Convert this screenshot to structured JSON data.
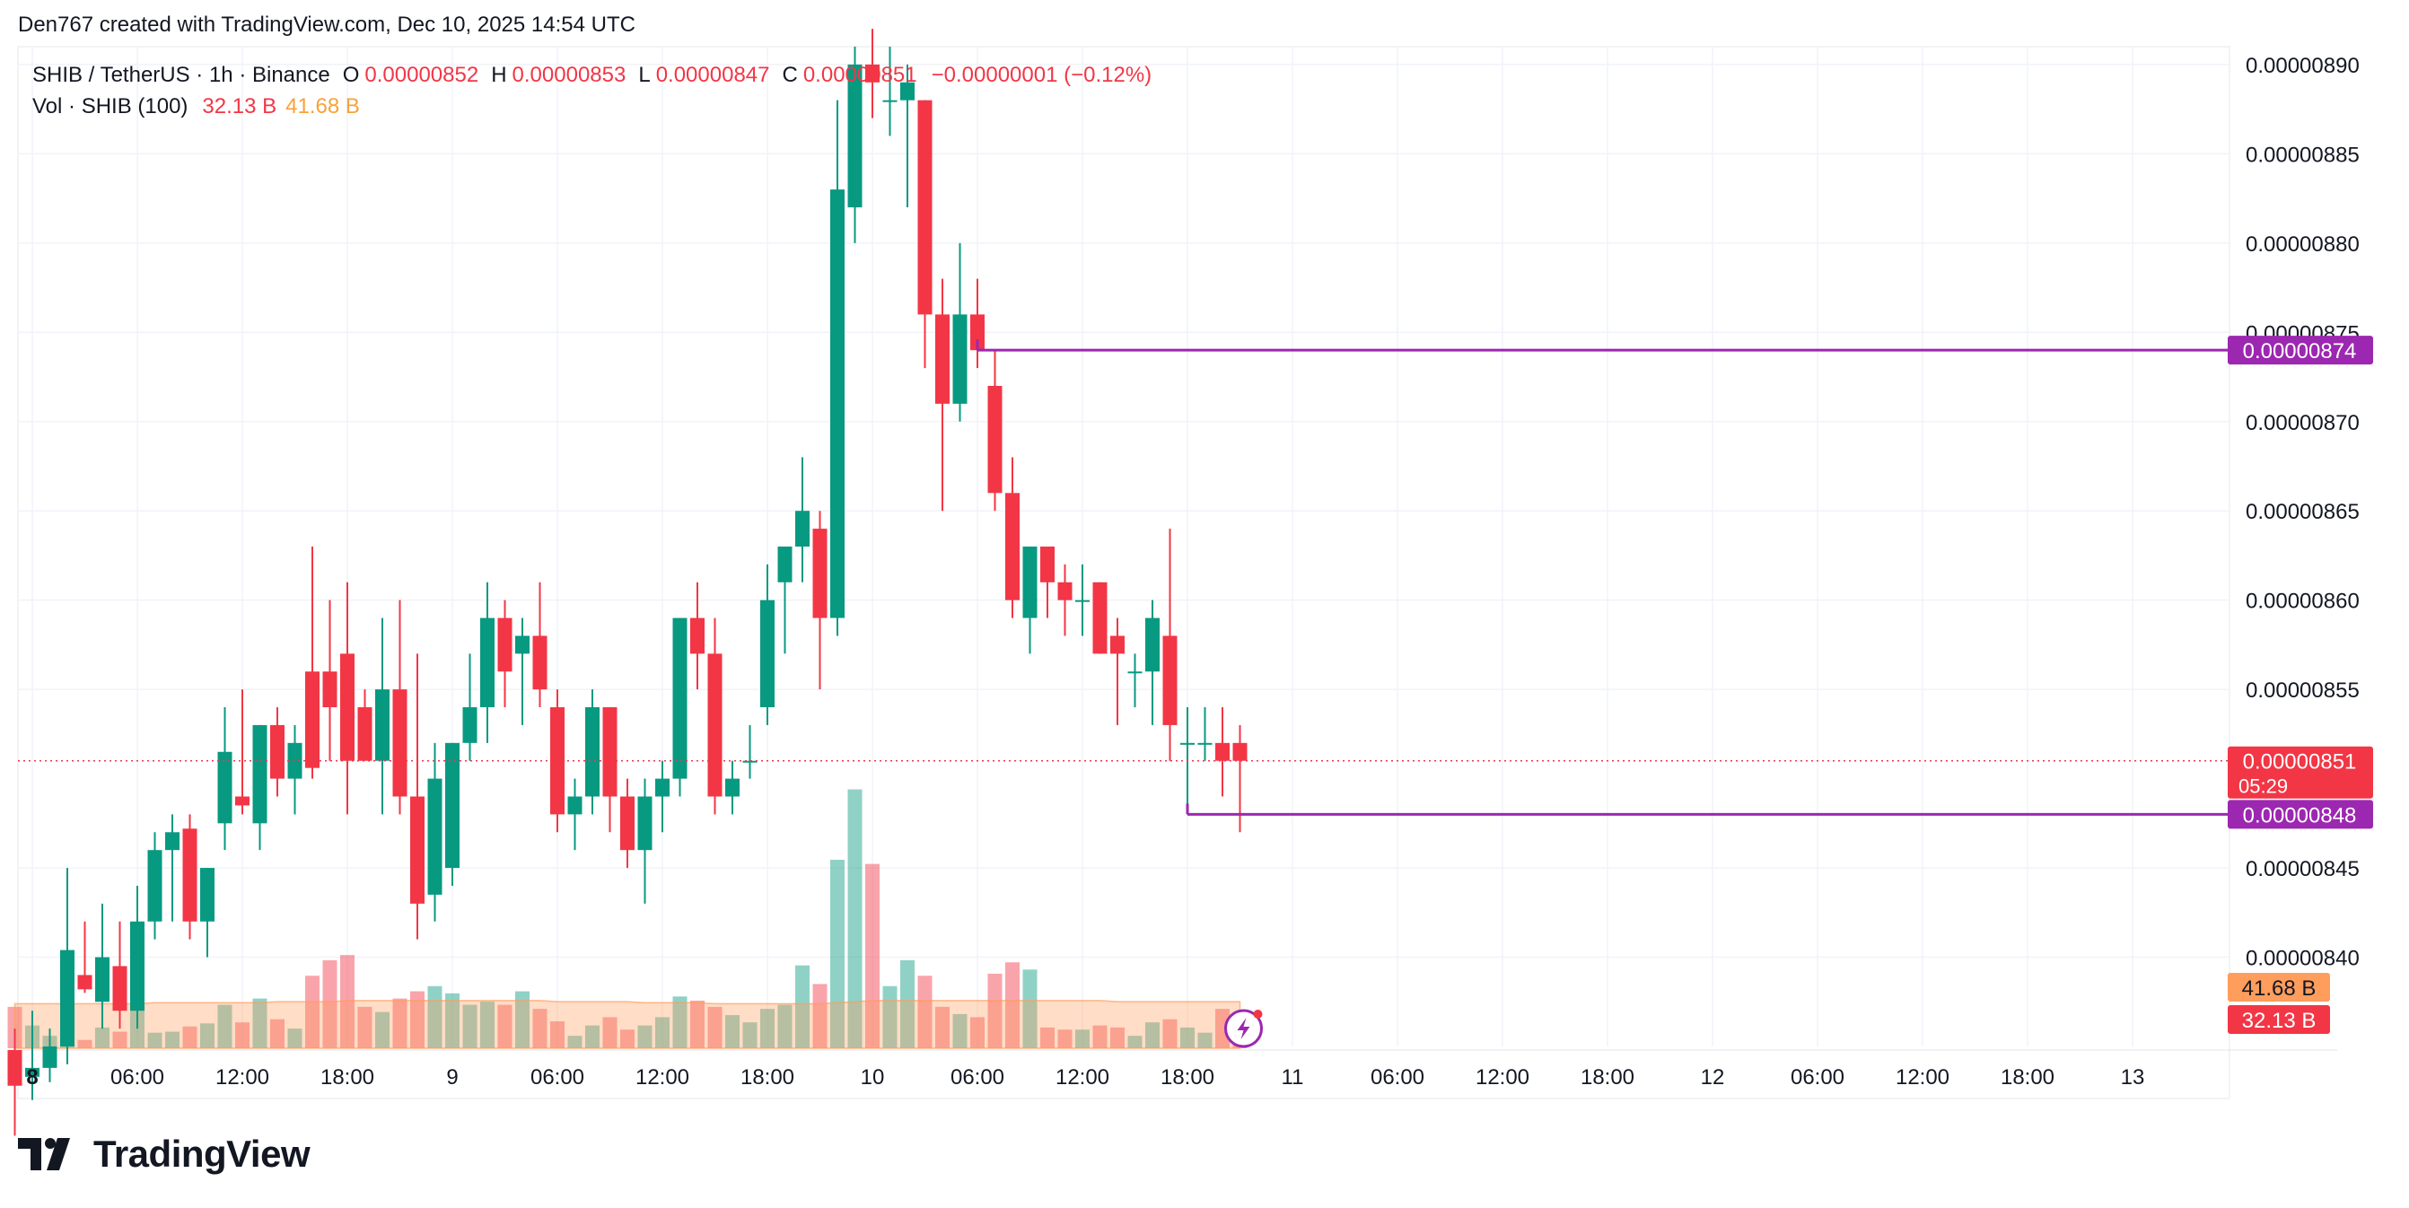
{
  "credit": "Den767 created with TradingView.com, Dec 10, 2025 14:54 UTC",
  "brand": {
    "name": "TradingView",
    "logo_icon": "tradingview-logo-icon"
  },
  "legend": {
    "symbol": "SHIB / TetherUS · 1h · Binance",
    "o_label": "O",
    "o_value": "0.00000852",
    "h_label": "H",
    "h_value": "0.00000853",
    "l_label": "L",
    "l_value": "0.00000847",
    "c_label": "C",
    "c_value": "0.00000851",
    "change": "−0.00000001 (−0.12%)",
    "vol_label": "Vol · SHIB (100)",
    "vol_value": "32.13 B",
    "vol_ma_value": "41.68 B"
  },
  "colors": {
    "up": "#089981",
    "down": "#f23645",
    "level_line": "#9c27b0",
    "vol_ma": "#ff9d5c",
    "price_line": "#f23645"
  },
  "chart_data": {
    "type": "candlestick",
    "symbol": "SHIB / TetherUS",
    "interval": "1h",
    "exchange": "Binance",
    "y_axis": {
      "min": 8.35e-06,
      "max": 8.91e-06,
      "ticks": [
        "0.00000890",
        "0.00000885",
        "0.00000880",
        "0.00000875",
        "0.00000870",
        "0.00000865",
        "0.00000860",
        "0.00000855",
        "0.00000845",
        "0.00000840"
      ],
      "tick_values": [
        8.9e-06,
        8.85e-06,
        8.8e-06,
        8.75e-06,
        8.7e-06,
        8.65e-06,
        8.6e-06,
        8.55e-06,
        8.45e-06,
        8.4e-06
      ]
    },
    "x_axis": {
      "labels": [
        "8",
        "06:00",
        "12:00",
        "18:00",
        "9",
        "06:00",
        "12:00",
        "18:00",
        "10",
        "06:00",
        "12:00",
        "18:00",
        "11",
        "06:00",
        "12:00",
        "18:00",
        "12",
        "06:00",
        "12:00",
        "18:00",
        "13"
      ],
      "label_hours": [
        1,
        7,
        13,
        19,
        25,
        31,
        37,
        43,
        49,
        55,
        61,
        67,
        73,
        79,
        85,
        91,
        97,
        103,
        109,
        115,
        121
      ],
      "bold": [
        "8"
      ]
    },
    "candles": [
      {
        "t": 0,
        "o": 8.348e-06,
        "h": 8.36e-06,
        "l": 8.3e-06,
        "c": 8.328e-06,
        "v": 0.4
      },
      {
        "t": 1,
        "o": 8.333e-06,
        "h": 8.37e-06,
        "l": 8.32e-06,
        "c": 8.338e-06,
        "v": 0.22
      },
      {
        "t": 2,
        "o": 8.338e-06,
        "h": 8.36e-06,
        "l": 8.33e-06,
        "c": 8.35e-06,
        "v": 0.12
      },
      {
        "t": 3,
        "o": 8.35e-06,
        "h": 8.45e-06,
        "l": 8.34e-06,
        "c": 8.404e-06,
        "v": 0.55
      },
      {
        "t": 4,
        "o": 8.39e-06,
        "h": 8.42e-06,
        "l": 8.38e-06,
        "c": 8.382e-06,
        "v": 0.08
      },
      {
        "t": 5,
        "o": 8.375e-06,
        "h": 8.43e-06,
        "l": 8.36e-06,
        "c": 8.4e-06,
        "v": 0.2
      },
      {
        "t": 6,
        "o": 8.395e-06,
        "h": 8.42e-06,
        "l": 8.36e-06,
        "c": 8.37e-06,
        "v": 0.16
      },
      {
        "t": 7,
        "o": 8.37e-06,
        "h": 8.44e-06,
        "l": 8.36e-06,
        "c": 8.42e-06,
        "v": 0.46
      },
      {
        "t": 8,
        "o": 8.42e-06,
        "h": 8.47e-06,
        "l": 8.41e-06,
        "c": 8.46e-06,
        "v": 0.15
      },
      {
        "t": 9,
        "o": 8.46e-06,
        "h": 8.48e-06,
        "l": 8.42e-06,
        "c": 8.47e-06,
        "v": 0.16
      },
      {
        "t": 10,
        "o": 8.472e-06,
        "h": 8.48e-06,
        "l": 8.41e-06,
        "c": 8.42e-06,
        "v": 0.21
      },
      {
        "t": 11,
        "o": 8.42e-06,
        "h": 8.45e-06,
        "l": 8.4e-06,
        "c": 8.45e-06,
        "v": 0.24
      },
      {
        "t": 12,
        "o": 8.475e-06,
        "h": 8.54e-06,
        "l": 8.46e-06,
        "c": 8.515e-06,
        "v": 0.42
      },
      {
        "t": 13,
        "o": 8.49e-06,
        "h": 8.55e-06,
        "l": 8.48e-06,
        "c": 8.485e-06,
        "v": 0.25
      },
      {
        "t": 14,
        "o": 8.475e-06,
        "h": 8.53e-06,
        "l": 8.46e-06,
        "c": 8.53e-06,
        "v": 0.48
      },
      {
        "t": 15,
        "o": 8.53e-06,
        "h": 8.54e-06,
        "l": 8.49e-06,
        "c": 8.5e-06,
        "v": 0.28
      },
      {
        "t": 16,
        "o": 8.5e-06,
        "h": 8.53e-06,
        "l": 8.48e-06,
        "c": 8.52e-06,
        "v": 0.19
      },
      {
        "t": 17,
        "o": 8.56e-06,
        "h": 8.63e-06,
        "l": 8.5e-06,
        "c": 8.506e-06,
        "v": 0.7
      },
      {
        "t": 18,
        "o": 8.56e-06,
        "h": 8.6e-06,
        "l": 8.51e-06,
        "c": 8.54e-06,
        "v": 0.85
      },
      {
        "t": 19,
        "o": 8.57e-06,
        "h": 8.61e-06,
        "l": 8.48e-06,
        "c": 8.51e-06,
        "v": 0.9
      },
      {
        "t": 20,
        "o": 8.54e-06,
        "h": 8.55e-06,
        "l": 8.51e-06,
        "c": 8.51e-06,
        "v": 0.4
      },
      {
        "t": 21,
        "o": 8.51e-06,
        "h": 8.59e-06,
        "l": 8.48e-06,
        "c": 8.55e-06,
        "v": 0.35
      },
      {
        "t": 22,
        "o": 8.55e-06,
        "h": 8.6e-06,
        "l": 8.48e-06,
        "c": 8.49e-06,
        "v": 0.48
      },
      {
        "t": 23,
        "o": 8.49e-06,
        "h": 8.57e-06,
        "l": 8.41e-06,
        "c": 8.43e-06,
        "v": 0.55
      },
      {
        "t": 24,
        "o": 8.435e-06,
        "h": 8.52e-06,
        "l": 8.42e-06,
        "c": 8.5e-06,
        "v": 0.6
      },
      {
        "t": 25,
        "o": 8.45e-06,
        "h": 8.52e-06,
        "l": 8.44e-06,
        "c": 8.52e-06,
        "v": 0.53
      },
      {
        "t": 26,
        "o": 8.52e-06,
        "h": 8.57e-06,
        "l": 8.51e-06,
        "c": 8.54e-06,
        "v": 0.42
      },
      {
        "t": 27,
        "o": 8.54e-06,
        "h": 8.61e-06,
        "l": 8.52e-06,
        "c": 8.59e-06,
        "v": 0.45
      },
      {
        "t": 28,
        "o": 8.59e-06,
        "h": 8.6e-06,
        "l": 8.54e-06,
        "c": 8.56e-06,
        "v": 0.42
      },
      {
        "t": 29,
        "o": 8.57e-06,
        "h": 8.59e-06,
        "l": 8.53e-06,
        "c": 8.58e-06,
        "v": 0.55
      },
      {
        "t": 30,
        "o": 8.58e-06,
        "h": 8.61e-06,
        "l": 8.54e-06,
        "c": 8.55e-06,
        "v": 0.38
      },
      {
        "t": 31,
        "o": 8.54e-06,
        "h": 8.55e-06,
        "l": 8.47e-06,
        "c": 8.48e-06,
        "v": 0.26
      },
      {
        "t": 32,
        "o": 8.48e-06,
        "h": 8.5e-06,
        "l": 8.46e-06,
        "c": 8.49e-06,
        "v": 0.12
      },
      {
        "t": 33,
        "o": 8.49e-06,
        "h": 8.55e-06,
        "l": 8.48e-06,
        "c": 8.54e-06,
        "v": 0.22
      },
      {
        "t": 34,
        "o": 8.54e-06,
        "h": 8.54e-06,
        "l": 8.47e-06,
        "c": 8.49e-06,
        "v": 0.3
      },
      {
        "t": 35,
        "o": 8.49e-06,
        "h": 8.5e-06,
        "l": 8.45e-06,
        "c": 8.46e-06,
        "v": 0.18
      },
      {
        "t": 36,
        "o": 8.46e-06,
        "h": 8.5e-06,
        "l": 8.43e-06,
        "c": 8.49e-06,
        "v": 0.22
      },
      {
        "t": 37,
        "o": 8.49e-06,
        "h": 8.51e-06,
        "l": 8.47e-06,
        "c": 8.5e-06,
        "v": 0.3
      },
      {
        "t": 38,
        "o": 8.5e-06,
        "h": 8.59e-06,
        "l": 8.49e-06,
        "c": 8.59e-06,
        "v": 0.5
      },
      {
        "t": 39,
        "o": 8.59e-06,
        "h": 8.61e-06,
        "l": 8.55e-06,
        "c": 8.57e-06,
        "v": 0.46
      },
      {
        "t": 40,
        "o": 8.57e-06,
        "h": 8.59e-06,
        "l": 8.48e-06,
        "c": 8.49e-06,
        "v": 0.4
      },
      {
        "t": 41,
        "o": 8.49e-06,
        "h": 8.51e-06,
        "l": 8.48e-06,
        "c": 8.5e-06,
        "v": 0.32
      },
      {
        "t": 42,
        "o": 8.51e-06,
        "h": 8.53e-06,
        "l": 8.5e-06,
        "c": 8.51e-06,
        "v": 0.25
      },
      {
        "t": 43,
        "o": 8.54e-06,
        "h": 8.62e-06,
        "l": 8.53e-06,
        "c": 8.6e-06,
        "v": 0.38
      },
      {
        "t": 44,
        "o": 8.61e-06,
        "h": 8.63e-06,
        "l": 8.57e-06,
        "c": 8.63e-06,
        "v": 0.42
      },
      {
        "t": 45,
        "o": 8.63e-06,
        "h": 8.68e-06,
        "l": 8.61e-06,
        "c": 8.65e-06,
        "v": 0.8
      },
      {
        "t": 46,
        "o": 8.64e-06,
        "h": 8.65e-06,
        "l": 8.55e-06,
        "c": 8.59e-06,
        "v": 0.62
      },
      {
        "t": 47,
        "o": 8.59e-06,
        "h": 8.88e-06,
        "l": 8.58e-06,
        "c": 8.83e-06,
        "v": 1.82
      },
      {
        "t": 48,
        "o": 8.82e-06,
        "h": 8.91e-06,
        "l": 8.8e-06,
        "c": 8.9e-06,
        "v": 2.5
      },
      {
        "t": 49,
        "o": 8.9e-06,
        "h": 8.92e-06,
        "l": 8.87e-06,
        "c": 8.89e-06,
        "v": 1.78
      },
      {
        "t": 50,
        "o": 8.88e-06,
        "h": 8.91e-06,
        "l": 8.86e-06,
        "c": 8.88e-06,
        "v": 0.6
      },
      {
        "t": 51,
        "o": 8.88e-06,
        "h": 8.9e-06,
        "l": 8.82e-06,
        "c": 8.89e-06,
        "v": 0.85
      },
      {
        "t": 52,
        "o": 8.88e-06,
        "h": 8.88e-06,
        "l": 8.73e-06,
        "c": 8.76e-06,
        "v": 0.7
      },
      {
        "t": 53,
        "o": 8.76e-06,
        "h": 8.78e-06,
        "l": 8.65e-06,
        "c": 8.71e-06,
        "v": 0.4
      },
      {
        "t": 54,
        "o": 8.71e-06,
        "h": 8.8e-06,
        "l": 8.7e-06,
        "c": 8.76e-06,
        "v": 0.33
      },
      {
        "t": 55,
        "o": 8.76e-06,
        "h": 8.78e-06,
        "l": 8.73e-06,
        "c": 8.74e-06,
        "v": 0.3
      },
      {
        "t": 56,
        "o": 8.72e-06,
        "h": 8.74e-06,
        "l": 8.65e-06,
        "c": 8.66e-06,
        "v": 0.72
      },
      {
        "t": 57,
        "o": 8.66e-06,
        "h": 8.68e-06,
        "l": 8.59e-06,
        "c": 8.6e-06,
        "v": 0.83
      },
      {
        "t": 58,
        "o": 8.59e-06,
        "h": 8.63e-06,
        "l": 8.57e-06,
        "c": 8.63e-06,
        "v": 0.76
      },
      {
        "t": 59,
        "o": 8.63e-06,
        "h": 8.63e-06,
        "l": 8.59e-06,
        "c": 8.61e-06,
        "v": 0.2
      },
      {
        "t": 60,
        "o": 8.61e-06,
        "h": 8.62e-06,
        "l": 8.58e-06,
        "c": 8.6e-06,
        "v": 0.18
      },
      {
        "t": 61,
        "o": 8.6e-06,
        "h": 8.62e-06,
        "l": 8.58e-06,
        "c": 8.6e-06,
        "v": 0.18
      },
      {
        "t": 62,
        "o": 8.61e-06,
        "h": 8.61e-06,
        "l": 8.57e-06,
        "c": 8.57e-06,
        "v": 0.22
      },
      {
        "t": 63,
        "o": 8.58e-06,
        "h": 8.59e-06,
        "l": 8.53e-06,
        "c": 8.57e-06,
        "v": 0.2
      },
      {
        "t": 64,
        "o": 8.56e-06,
        "h": 8.57e-06,
        "l": 8.54e-06,
        "c": 8.56e-06,
        "v": 0.12
      },
      {
        "t": 65,
        "o": 8.56e-06,
        "h": 8.6e-06,
        "l": 8.53e-06,
        "c": 8.59e-06,
        "v": 0.25
      },
      {
        "t": 66,
        "o": 8.58e-06,
        "h": 8.64e-06,
        "l": 8.51e-06,
        "c": 8.53e-06,
        "v": 0.28
      },
      {
        "t": 67,
        "o": 8.52e-06,
        "h": 8.54e-06,
        "l": 8.48e-06,
        "c": 8.52e-06,
        "v": 0.2
      },
      {
        "t": 68,
        "o": 8.52e-06,
        "h": 8.54e-06,
        "l": 8.51e-06,
        "c": 8.52e-06,
        "v": 0.15
      },
      {
        "t": 69,
        "o": 8.52e-06,
        "h": 8.54e-06,
        "l": 8.49e-06,
        "c": 8.51e-06,
        "v": 0.38
      },
      {
        "t": 70,
        "o": 8.52e-06,
        "h": 8.53e-06,
        "l": 8.47e-06,
        "c": 8.51e-06,
        "v": 0.1
      }
    ],
    "volume_ma": [
      0.43,
      0.43,
      0.43,
      0.43,
      0.43,
      0.43,
      0.43,
      0.43,
      0.44,
      0.44,
      0.44,
      0.44,
      0.44,
      0.44,
      0.44,
      0.45,
      0.45,
      0.45,
      0.45,
      0.46,
      0.46,
      0.46,
      0.46,
      0.46,
      0.46,
      0.46,
      0.46,
      0.46,
      0.46,
      0.46,
      0.46,
      0.45,
      0.45,
      0.45,
      0.45,
      0.45,
      0.44,
      0.44,
      0.44,
      0.44,
      0.43,
      0.43,
      0.43,
      0.43,
      0.43,
      0.43,
      0.43,
      0.44,
      0.45,
      0.46,
      0.46,
      0.46,
      0.46,
      0.46,
      0.46,
      0.46,
      0.46,
      0.46,
      0.46,
      0.46,
      0.46,
      0.46,
      0.46,
      0.45,
      0.45,
      0.45,
      0.45,
      0.45,
      0.45,
      0.45,
      0.45
    ],
    "volume_scale_max": 2.6,
    "horizontal_levels": [
      {
        "price": 8.74e-06,
        "label": "0.00000874",
        "from_t": 55
      },
      {
        "price": 8.48e-06,
        "label": "0.00000848",
        "from_t": 67
      }
    ],
    "current_price": {
      "price": 8.51e-06,
      "label": "0.00000851",
      "countdown": "05:29"
    },
    "volume_labels": [
      {
        "label": "41.68 B",
        "kind": "ma"
      },
      {
        "label": "32.13 B",
        "kind": "vol"
      }
    ]
  }
}
